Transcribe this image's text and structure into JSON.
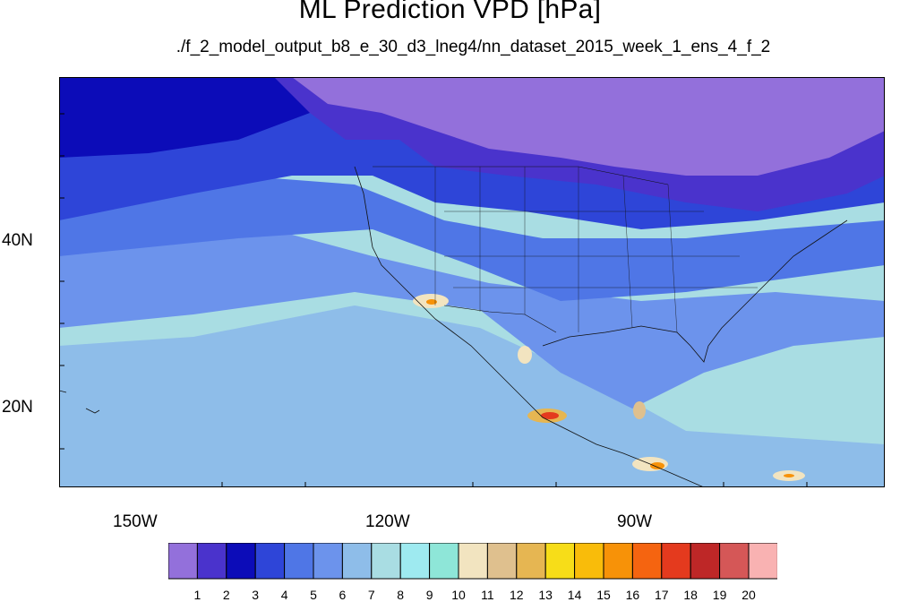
{
  "title": "ML Prediction VPD [hPa]",
  "subtitle": "./f_2_model_output_b8_e_30_d3_lneg4/nn_dataset_2015_week_1_ens_4_f_2",
  "axes": {
    "y_labels": [
      "40N",
      "20N"
    ],
    "x_labels": [
      "150W",
      "120W",
      "90W"
    ]
  },
  "colorbar": {
    "labels": [
      "1",
      "2",
      "3",
      "4",
      "5",
      "6",
      "7",
      "8",
      "9",
      "10",
      "11",
      "12",
      "13",
      "14",
      "15",
      "16",
      "17",
      "18",
      "19",
      "20"
    ],
    "colors": [
      "#9370db",
      "#4a33cc",
      "#0c0cb8",
      "#2e45d8",
      "#4f76e6",
      "#6c93ec",
      "#8ebde9",
      "#a9dde3",
      "#9eeaf0",
      "#8ee6d8",
      "#f2e4c0",
      "#dfc08e",
      "#e6b652",
      "#f7dd18",
      "#f9bc0a",
      "#f79208",
      "#f56410",
      "#e43a1e",
      "#be2727",
      "#d55757",
      "#f9b2b2"
    ]
  },
  "map": {
    "projection": "cylindrical-equidistant",
    "lon_range": [
      -160,
      -62
    ],
    "lat_range": [
      10,
      59
    ],
    "lat_major_ticks": [
      20,
      40
    ],
    "lon_major_ticks": [
      -150,
      -120,
      -90
    ]
  }
}
